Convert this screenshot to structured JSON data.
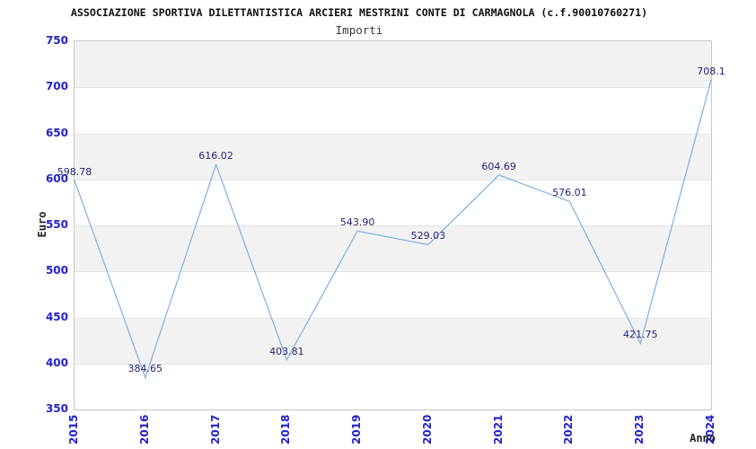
{
  "header": {
    "title": "ASSOCIAZIONE SPORTIVA DILETTANTISTICA ARCIERI MESTRINI CONTE DI CARMAGNOLA (c.f.90010760271)",
    "subtitle": "Importi"
  },
  "chart_data": {
    "type": "line",
    "title": "Importi",
    "xlabel": "Anno",
    "ylabel": "Euro",
    "categories": [
      "2015",
      "2016",
      "2017",
      "2018",
      "2019",
      "2020",
      "2021",
      "2022",
      "2023",
      "2024"
    ],
    "series": [
      {
        "name": "Importi",
        "values": [
          598.78,
          384.65,
          616.02,
          403.81,
          543.9,
          529.03,
          604.69,
          576.01,
          421.75,
          708.1
        ]
      }
    ],
    "point_labels": [
      "598.78",
      "384.65",
      "616.02",
      "403.81",
      "543.90",
      "529.03",
      "604.69",
      "576.01",
      "421.75",
      "708.1"
    ],
    "ylim": [
      350,
      750
    ],
    "ytick_step": 50,
    "ytick_labels": [
      "750",
      "700",
      "650",
      "600",
      "550",
      "500",
      "450",
      "400",
      "350"
    ],
    "grid": "horizontal alternating bands",
    "legend": "none",
    "colors": {
      "line": "#7cb0e2",
      "tick_label": "#2222cc",
      "point_label": "#232377",
      "band_fill": "#f2f2f2",
      "grid_line": "#e4e4e4",
      "plot_border": "#c8c8c8"
    }
  }
}
